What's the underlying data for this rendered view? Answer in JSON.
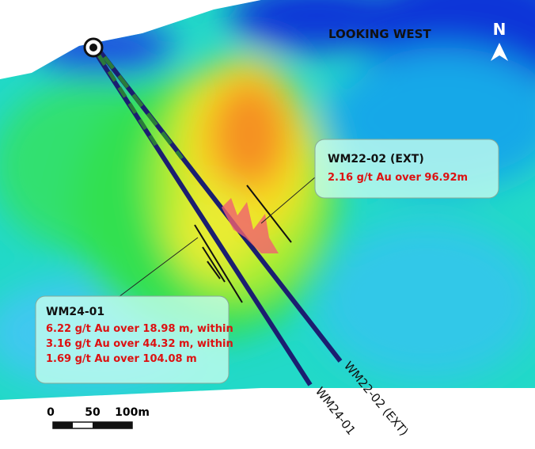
{
  "header": {
    "view_label": "LOOKING WEST",
    "north_label": "N"
  },
  "callouts": [
    {
      "title": "WM22-02 (EXT)",
      "lines": [
        "2.16 g/t Au over 96.92m"
      ]
    },
    {
      "title": "WM24-01",
      "lines": [
        "6.22 g/t Au over 18.98 m, within",
        "3.16 g/t Au over 44.32 m, within",
        "1.69 g/t Au over 104.08 m"
      ]
    }
  ],
  "drill_holes": [
    {
      "label": "WM22-02 (EXT)"
    },
    {
      "label": "WM24-01"
    }
  ],
  "scale_bar": {
    "labels": [
      "0",
      "50",
      "100m"
    ]
  }
}
